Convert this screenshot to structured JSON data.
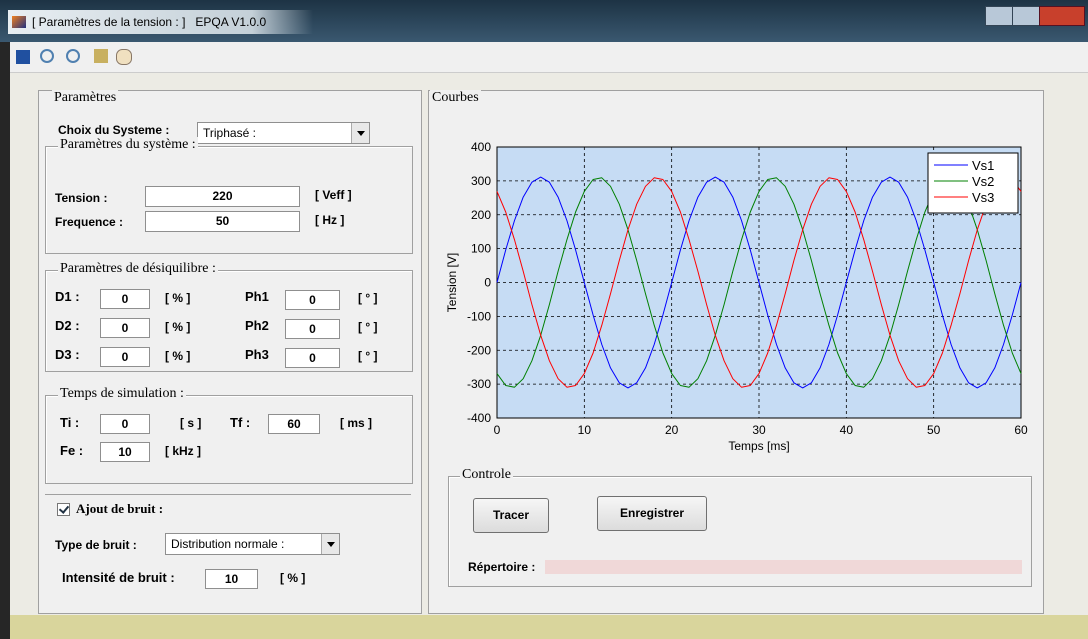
{
  "window": {
    "title": "[ Paramètres de la tension : ]   EPQA V1.0.0"
  },
  "params": {
    "title": "Paramètres",
    "system_label": "Choix du Systeme :",
    "system_value": "Triphasé :",
    "system_group": {
      "title": "Paramètres du système :",
      "tension_label": "Tension :",
      "tension_value": "220",
      "tension_unit": "[ Veff ]",
      "freq_label": "Frequence :",
      "freq_value": "50",
      "freq_unit": "[ Hz ]"
    },
    "unbalance": {
      "title": "Paramètres de désiquilibre :",
      "rows": [
        {
          "d_label": "D1 :",
          "d_value": "0",
          "d_unit": "[ % ]",
          "ph_label": "Ph1",
          "ph_value": "0",
          "ph_unit": "[ ° ]"
        },
        {
          "d_label": "D2 :",
          "d_value": "0",
          "d_unit": "[ % ]",
          "ph_label": "Ph2",
          "ph_value": "0",
          "ph_unit": "[ ° ]"
        },
        {
          "d_label": "D3 :",
          "d_value": "0",
          "d_unit": "[ % ]",
          "ph_label": "Ph3",
          "ph_value": "0",
          "ph_unit": "[ ° ]"
        }
      ]
    },
    "simulation": {
      "title": "Temps de simulation :",
      "ti_label": "Ti :",
      "ti_value": "0",
      "ti_unit": "[ s ]",
      "tf_label": "Tf :",
      "tf_value": "60",
      "tf_unit": "[ ms ]",
      "fe_label": "Fe :",
      "fe_value": "10",
      "fe_unit": "[ kHz ]"
    },
    "noise": {
      "checkbox_label": "Ajout de bruit :",
      "checked": true,
      "type_label": "Type de bruit :",
      "type_value": "Distribution normale :",
      "intensity_label": "Intensité de bruit :",
      "intensity_value": "10",
      "intensity_unit": "[ % ]"
    }
  },
  "curves": {
    "title": "Courbes"
  },
  "control": {
    "title": "Controle",
    "plot_button": "Tracer",
    "save_button": "Enregistrer",
    "directory_label": "Répertoire :"
  },
  "chart_data": {
    "type": "line",
    "xlabel": "Temps [ms]",
    "ylabel": "Tension [V]",
    "x": [
      0,
      1,
      2,
      3,
      4,
      5,
      6,
      7,
      8,
      9,
      10,
      11,
      12,
      13,
      14,
      15,
      16,
      17,
      18,
      19,
      20,
      21,
      22,
      23,
      24,
      25,
      26,
      27,
      28,
      29,
      30,
      31,
      32,
      33,
      34,
      35,
      36,
      37,
      38,
      39,
      40,
      41,
      42,
      43,
      44,
      45,
      46,
      47,
      48,
      49,
      50,
      51,
      52,
      53,
      54,
      55,
      56,
      57,
      58,
      59,
      60
    ],
    "series": [
      {
        "name": "Vs1",
        "color": "#0000ff",
        "values": [
          0,
          96,
          183,
          252,
          296,
          311,
          296,
          252,
          183,
          96,
          0,
          -96,
          -183,
          -252,
          -296,
          -311,
          -296,
          -252,
          -183,
          -96,
          0,
          96,
          183,
          252,
          296,
          311,
          296,
          252,
          183,
          96,
          0,
          -96,
          -183,
          -252,
          -296,
          -311,
          -296,
          -252,
          -183,
          -96,
          0,
          96,
          183,
          252,
          296,
          311,
          296,
          252,
          183,
          96,
          0,
          -96,
          -183,
          -252,
          -296,
          -311,
          -296,
          -252,
          -183,
          -96,
          0
        ]
      },
      {
        "name": "Vs2",
        "color": "#008000",
        "values": [
          -269,
          -304,
          -309,
          -284,
          -231,
          -156,
          -65,
          33,
          126,
          208,
          269,
          304,
          309,
          284,
          231,
          156,
          65,
          -33,
          -126,
          -208,
          -269,
          -304,
          -309,
          -284,
          -231,
          -156,
          -65,
          33,
          126,
          208,
          269,
          304,
          309,
          284,
          231,
          156,
          65,
          -33,
          -126,
          -208,
          -269,
          -304,
          -309,
          -284,
          -231,
          -156,
          -65,
          33,
          126,
          208,
          269,
          304,
          309,
          284,
          231,
          156,
          65,
          -33,
          -126,
          -208,
          -269
        ]
      },
      {
        "name": "Vs3",
        "color": "#ff0000",
        "values": [
          269,
          208,
          126,
          33,
          -65,
          -156,
          -231,
          -284,
          -309,
          -304,
          -269,
          -208,
          -126,
          -33,
          65,
          156,
          231,
          284,
          309,
          304,
          269,
          208,
          126,
          33,
          -65,
          -156,
          -231,
          -284,
          -309,
          -304,
          -269,
          -208,
          -126,
          -33,
          65,
          156,
          231,
          284,
          309,
          304,
          269,
          208,
          126,
          33,
          -65,
          -156,
          -231,
          -284,
          -309,
          -304,
          -269,
          -208,
          -126,
          -33,
          65,
          156,
          231,
          284,
          309,
          304,
          269
        ]
      }
    ],
    "xlim": [
      0,
      60
    ],
    "xticks": [
      0,
      10,
      20,
      30,
      40,
      50,
      60
    ],
    "ylim": [
      -400,
      400
    ],
    "yticks": [
      -400,
      -300,
      -200,
      -100,
      0,
      100,
      200,
      300,
      400
    ],
    "grid": true,
    "legend": "northeast"
  }
}
